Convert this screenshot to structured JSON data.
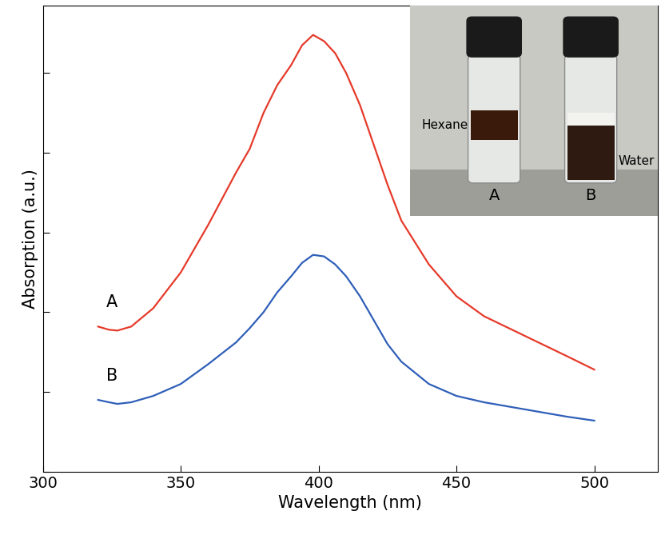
{
  "chart_data": {
    "type": "line",
    "x_label": "Wavelength (nm)",
    "y_label": "Absorption (a.u.)",
    "xlim": [
      300,
      523
    ],
    "xticks": [
      300,
      350,
      400,
      450,
      500
    ],
    "ylim": [
      0,
      5.85
    ],
    "yticks": [
      0,
      1,
      2,
      3,
      4,
      5
    ],
    "tick_labels": "x",
    "grid": false,
    "series": [
      {
        "name": "A",
        "color": "#e53a2a",
        "x": [
          320,
          324,
          327,
          332,
          340,
          350,
          360,
          370,
          375,
          380,
          385,
          390,
          394,
          398,
          402,
          406,
          410,
          415,
          420,
          425,
          430,
          440,
          450,
          460,
          475,
          490,
          500
        ],
        "values": [
          1.82,
          1.78,
          1.77,
          1.82,
          2.05,
          2.5,
          3.1,
          3.75,
          4.05,
          4.5,
          4.85,
          5.1,
          5.35,
          5.48,
          5.4,
          5.25,
          5.0,
          4.6,
          4.1,
          3.6,
          3.15,
          2.6,
          2.2,
          1.95,
          1.7,
          1.45,
          1.28
        ]
      },
      {
        "name": "B",
        "color": "#2f5fb8",
        "x": [
          320,
          324,
          327,
          332,
          340,
          350,
          360,
          370,
          375,
          380,
          385,
          390,
          394,
          398,
          402,
          406,
          410,
          415,
          420,
          425,
          430,
          440,
          450,
          460,
          475,
          490,
          500
        ],
        "values": [
          0.9,
          0.87,
          0.85,
          0.87,
          0.95,
          1.1,
          1.35,
          1.62,
          1.8,
          2.0,
          2.25,
          2.45,
          2.62,
          2.72,
          2.7,
          2.6,
          2.45,
          2.2,
          1.9,
          1.6,
          1.38,
          1.1,
          0.95,
          0.87,
          0.78,
          0.69,
          0.64
        ]
      }
    ],
    "annotations": [
      "Hexane",
      "A",
      "Water",
      "B"
    ]
  }
}
